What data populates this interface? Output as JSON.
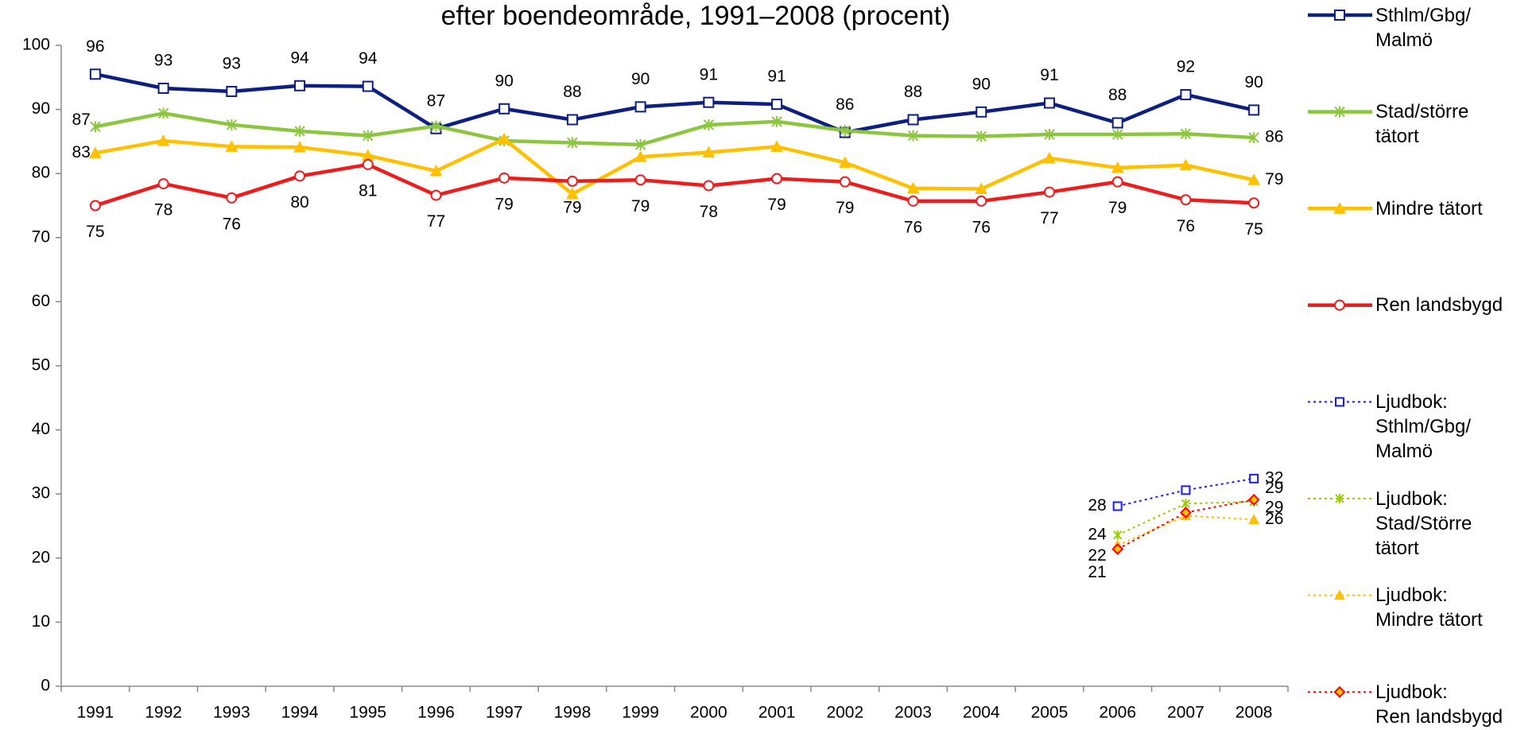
{
  "chart_data": {
    "type": "line",
    "title": "efter boendeområde, 1991–2008 (procent)",
    "categories": [
      "1991",
      "1992",
      "1993",
      "1994",
      "1995",
      "1996",
      "1997",
      "1998",
      "1999",
      "2000",
      "2001",
      "2002",
      "2003",
      "2004",
      "2005",
      "2006",
      "2007",
      "2008"
    ],
    "ylim": [
      0,
      100
    ],
    "yticks": [
      0,
      10,
      20,
      30,
      40,
      50,
      60,
      70,
      80,
      90,
      100
    ],
    "grid": false,
    "legend": "right",
    "series": [
      {
        "name": "Sthlm/Gbg/\nMalmö",
        "color": "#0d1f80",
        "marker": "square",
        "linestyle": "solid",
        "values": [
          95.5,
          93.3,
          92.8,
          93.7,
          93.6,
          87.0,
          90.1,
          88.4,
          90.4,
          91.1,
          90.8,
          86.4,
          88.4,
          89.6,
          91.0,
          87.9,
          92.3,
          89.9
        ],
        "value_labels": [
          "96",
          "93",
          "93",
          "94",
          "94",
          "87",
          "90",
          "88",
          "90",
          "91",
          "91",
          "86",
          "88",
          "90",
          "91",
          "88",
          "92",
          "90"
        ]
      },
      {
        "name": "Stad/större\ntätort",
        "color": "#8cc63e",
        "marker": "asterisk",
        "linestyle": "solid",
        "values": [
          87.3,
          89.4,
          87.6,
          86.6,
          85.9,
          87.4,
          85.1,
          84.8,
          84.5,
          87.6,
          88.1,
          86.7,
          85.9,
          85.8,
          86.1,
          86.1,
          86.2,
          85.6
        ],
        "value_labels": [
          "87",
          null,
          null,
          null,
          null,
          null,
          null,
          null,
          null,
          null,
          null,
          null,
          null,
          null,
          null,
          null,
          null,
          "86"
        ]
      },
      {
        "name": "Mindre tätort",
        "color": "#ffc000",
        "marker": "triangle",
        "linestyle": "solid",
        "values": [
          83.2,
          85.1,
          84.2,
          84.1,
          82.8,
          80.4,
          85.4,
          76.8,
          82.6,
          83.3,
          84.2,
          81.7,
          77.7,
          77.6,
          82.4,
          80.9,
          81.3,
          79.0
        ],
        "value_labels": [
          "83",
          null,
          null,
          null,
          null,
          null,
          null,
          null,
          null,
          null,
          null,
          null,
          null,
          null,
          null,
          null,
          null,
          "79"
        ]
      },
      {
        "name": "Ren landsbygd",
        "color": "#ee1c1c",
        "marker": "circle",
        "linestyle": "solid",
        "values": [
          75.0,
          78.4,
          76.2,
          79.6,
          81.4,
          76.6,
          79.3,
          78.8,
          79.0,
          78.1,
          79.2,
          78.7,
          75.7,
          75.7,
          77.1,
          78.7,
          75.9,
          75.4
        ],
        "value_labels": [
          "75",
          "78",
          "76",
          "80",
          "81",
          "77",
          "79",
          "79",
          "79",
          "78",
          "79",
          "79",
          "76",
          "76",
          "77",
          "79",
          "76",
          "75"
        ]
      },
      {
        "name": "Ljudbok:\nSthlm/Gbg/\nMalmö",
        "color": "#1a1aff",
        "marker": "square",
        "linestyle": "dotted",
        "values": [
          null,
          null,
          null,
          null,
          null,
          null,
          null,
          null,
          null,
          null,
          null,
          null,
          null,
          null,
          null,
          28.1,
          30.6,
          32.4
        ],
        "value_labels": [
          null,
          null,
          null,
          null,
          null,
          null,
          null,
          null,
          null,
          null,
          null,
          null,
          null,
          null,
          null,
          "28",
          null,
          "32"
        ]
      },
      {
        "name": "Ljudbok:\nStad/Större\ntätort",
        "color": "#99cc00",
        "marker": "asterisk",
        "linestyle": "dotted",
        "values": [
          null,
          null,
          null,
          null,
          null,
          null,
          null,
          null,
          null,
          null,
          null,
          null,
          null,
          null,
          null,
          23.6,
          28.5,
          28.8
        ],
        "value_labels": [
          null,
          null,
          null,
          null,
          null,
          null,
          null,
          null,
          null,
          null,
          null,
          null,
          null,
          null,
          null,
          "24",
          null,
          "29"
        ]
      },
      {
        "name": "Ljudbok:\nMindre tätort",
        "color": "#ffc000",
        "marker": "triangle",
        "linestyle": "dotted",
        "values": [
          null,
          null,
          null,
          null,
          null,
          null,
          null,
          null,
          null,
          null,
          null,
          null,
          null,
          null,
          null,
          22.0,
          26.6,
          26.0
        ],
        "value_labels": [
          null,
          null,
          null,
          null,
          null,
          null,
          null,
          null,
          null,
          null,
          null,
          null,
          null,
          null,
          null,
          "22",
          null,
          "26"
        ]
      },
      {
        "name": "Ljudbok:\nRen landsbygd",
        "color": "#ff0000",
        "marker": "diamond",
        "linestyle": "dotted",
        "values": [
          null,
          null,
          null,
          null,
          null,
          null,
          null,
          null,
          null,
          null,
          null,
          null,
          null,
          null,
          null,
          21.4,
          27.1,
          29.1
        ],
        "value_labels": [
          null,
          null,
          null,
          null,
          null,
          null,
          null,
          null,
          null,
          null,
          null,
          null,
          null,
          null,
          null,
          "21",
          null,
          "29"
        ]
      }
    ]
  }
}
